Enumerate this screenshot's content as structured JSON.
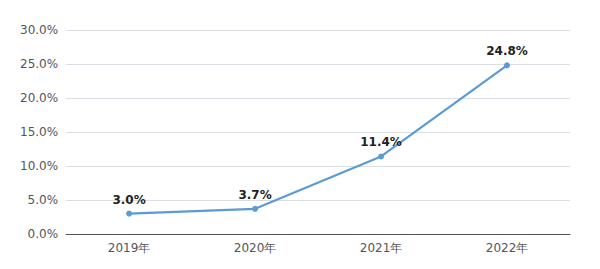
{
  "chart_data": {
    "type": "line",
    "categories": [
      "2019年",
      "2020年",
      "2021年",
      "2022年"
    ],
    "values": [
      3.0,
      3.7,
      11.4,
      24.8
    ],
    "value_labels": [
      "3.0%",
      "3.7%",
      "11.4%",
      "24.8%"
    ],
    "data_labels": true,
    "color": "#5b9bd5",
    "ylim": [
      0.0,
      30.0
    ],
    "yticks": [
      {
        "value": 0.0,
        "label": "0.0%"
      },
      {
        "value": 5.0,
        "label": "5.0%"
      },
      {
        "value": 10.0,
        "label": "10.0%"
      },
      {
        "value": 15.0,
        "label": "15.0%"
      },
      {
        "value": 20.0,
        "label": "20.0%"
      },
      {
        "value": 25.0,
        "label": "25.0%"
      },
      {
        "value": 30.0,
        "label": "30.0%"
      }
    ],
    "grid": true
  }
}
